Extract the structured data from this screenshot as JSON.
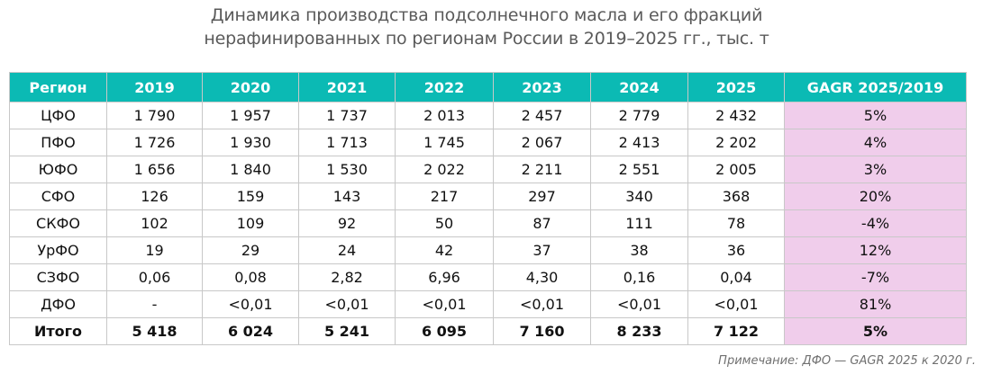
{
  "title": {
    "line1": "Динамика производства подсолнечного масла и его фракций",
    "line2": "нерафинированных по регионам России в 2019–2025 гг., тыс. т"
  },
  "colors": {
    "header_bg": "#0bbab4",
    "gagr_bg": "#f0cdeb",
    "border": "#c8c8c8"
  },
  "table": {
    "headers": [
      "Регион",
      "2019",
      "2020",
      "2021",
      "2022",
      "2023",
      "2024",
      "2025",
      "GAGR 2025/2019"
    ],
    "rows": [
      [
        "ЦФО",
        "1 790",
        "1 957",
        "1 737",
        "2 013",
        "2 457",
        "2 779",
        "2 432",
        "5%"
      ],
      [
        "ПФО",
        "1 726",
        "1 930",
        "1 713",
        "1 745",
        "2 067",
        "2 413",
        "2 202",
        "4%"
      ],
      [
        "ЮФО",
        "1 656",
        "1 840",
        "1 530",
        "2 022",
        "2 211",
        "2 551",
        "2 005",
        "3%"
      ],
      [
        "СФО",
        "126",
        "159",
        "143",
        "217",
        "297",
        "340",
        "368",
        "20%"
      ],
      [
        "СКФО",
        "102",
        "109",
        "92",
        "50",
        "87",
        "111",
        "78",
        "-4%"
      ],
      [
        "УрФО",
        "19",
        "29",
        "24",
        "42",
        "37",
        "38",
        "36",
        "12%"
      ],
      [
        "СЗФО",
        "0,06",
        "0,08",
        "2,82",
        "6,96",
        "4,30",
        "0,16",
        "0,04",
        "-7%"
      ],
      [
        "ДФО",
        "-",
        "<0,01",
        "<0,01",
        "<0,01",
        "<0,01",
        "<0,01",
        "<0,01",
        "81%"
      ],
      [
        "Итого",
        "5 418",
        "6 024",
        "5 241",
        "6 095",
        "7 160",
        "8 233",
        "7 122",
        "5%"
      ]
    ]
  },
  "note": "Примечание: ДФО — GAGR 2025 к 2020 г."
}
